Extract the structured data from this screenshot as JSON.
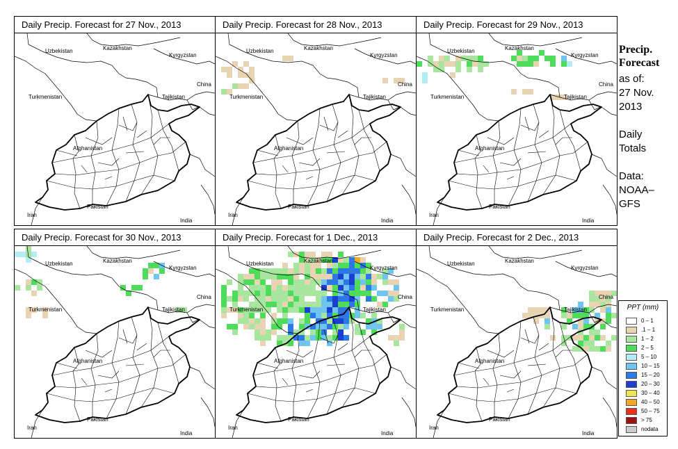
{
  "panels": [
    {
      "title": "Daily Precip. Forecast for  27 Nov., 2013",
      "pattern": 0
    },
    {
      "title": "Daily Precip. Forecast for  28 Nov., 2013",
      "pattern": 1
    },
    {
      "title": "Daily Precip. Forecast for  29 Nov., 2013",
      "pattern": 2
    },
    {
      "title": "Daily Precip. Forecast for  30 Nov., 2013",
      "pattern": 3
    },
    {
      "title": "Daily Precip. Forecast for  1 Dec., 2013",
      "pattern": 4
    },
    {
      "title": "Daily Precip. Forecast for  2 Dec., 2013",
      "pattern": 5
    }
  ],
  "map_labels": {
    "uzbekistan": "Uzbekistan",
    "kazakhstan": "Kazakhstan",
    "kyrgyzstan": "Kyrgyzstan",
    "china": "China",
    "turkmenistan": "Turkmenistan",
    "tajikistan": "Tajikistan",
    "afghanistan": "Afghanistan",
    "iran": "Iran",
    "pakistan": "Pakistan",
    "india": "India"
  },
  "side": {
    "title_line1": "Precip.",
    "title_line2": "Forecast",
    "as_of": "as of:",
    "date_line1": "27 Nov.",
    "date_line2": "2013",
    "daily_line1": "Daily",
    "daily_line2": "Totals",
    "data_line1": "Data:",
    "data_line2": "NOAA–",
    "data_line3": "GFS"
  },
  "legend": {
    "title": "PPT (mm)",
    "items": [
      {
        "label": "0 – 1",
        "color": "#ffffff"
      },
      {
        "label": ".1 – 1",
        "color": "#e8d3b3"
      },
      {
        "label": "1 – 2",
        "color": "#a8e6a0"
      },
      {
        "label": "2 – 5",
        "color": "#4fdc5a"
      },
      {
        "label": "5 – 10",
        "color": "#b3ecf7"
      },
      {
        "label": "10 – 15",
        "color": "#6fc4f0"
      },
      {
        "label": "15 – 20",
        "color": "#2e78e6"
      },
      {
        "label": "20 – 30",
        "color": "#1a3fd1"
      },
      {
        "label": "30 – 40",
        "color": "#f2e35c"
      },
      {
        "label": "40 – 50",
        "color": "#f5a623"
      },
      {
        "label": "50 – 75",
        "color": "#e8341c"
      },
      {
        "label": "> 75",
        "color": "#a01010"
      },
      {
        "label": "nodata",
        "color": "#cccccc"
      }
    ]
  }
}
